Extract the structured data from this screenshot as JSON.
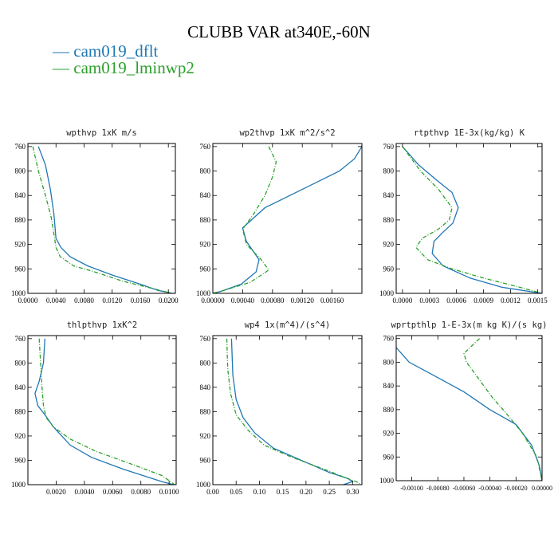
{
  "title": "CLUBB VAR at340E,-60N",
  "legend": [
    {
      "label": "cam019_dflt",
      "color": "#1f77b4"
    },
    {
      "label": "cam019_lminwp2",
      "color": "#2ca02c"
    }
  ],
  "chart_data": [
    {
      "type": "line",
      "title": "wpthvp   1xK m/s",
      "xlim": [
        0.0,
        0.021
      ],
      "ylim": [
        1000,
        755
      ],
      "xticks": [
        "0.0000",
        "0.0040",
        "0.0080",
        "0.0120",
        "0.0160",
        "0.0200"
      ],
      "xtick_values": [
        0.0,
        0.004,
        0.008,
        0.012,
        0.016,
        0.02
      ],
      "yticks": [
        760,
        800,
        840,
        880,
        920,
        960,
        1000
      ],
      "series": [
        {
          "name": "cam019_dflt",
          "x": [
            0.0015,
            0.0025,
            0.0032,
            0.0037,
            0.004,
            0.0047,
            0.006,
            0.0085,
            0.012,
            0.016,
            0.0185,
            0.0205,
            0.0209
          ],
          "y": [
            760,
            790,
            830,
            870,
            910,
            925,
            940,
            955,
            970,
            985,
            995,
            1000,
            1000
          ]
        },
        {
          "name": "cam019_lminwp2",
          "x": [
            0.0007,
            0.0015,
            0.0025,
            0.0033,
            0.0038,
            0.004,
            0.0046,
            0.0065,
            0.0095,
            0.0135,
            0.017,
            0.0195,
            0.0205
          ],
          "y": [
            760,
            800,
            840,
            875,
            910,
            925,
            940,
            955,
            965,
            980,
            990,
            997,
            1000
          ]
        }
      ]
    },
    {
      "type": "line",
      "title": "wp2thvp   1xK m^2/s^2",
      "xlim": [
        0.0,
        0.002
      ],
      "ylim": [
        1000,
        755
      ],
      "xticks": [
        "0.00000",
        "0.00040",
        "0.00080",
        "0.00120",
        "0.00160"
      ],
      "xtick_values": [
        0.0,
        0.0004,
        0.0008,
        0.0012,
        0.0016
      ],
      "yticks": [
        760,
        800,
        840,
        880,
        920,
        960,
        1000
      ],
      "series": [
        {
          "name": "cam019_dflt",
          "x": [
            0.002,
            0.0019,
            0.0017,
            0.0012,
            0.0007,
            0.0004,
            0.00045,
            0.00062,
            0.00058,
            0.00038,
            0.0001,
            0.0
          ],
          "y": [
            760,
            780,
            800,
            830,
            860,
            893,
            915,
            945,
            965,
            985,
            997,
            1000
          ]
        },
        {
          "name": "cam019_lminwp2",
          "x": [
            0.00075,
            0.00085,
            0.0008,
            0.0007,
            0.00055,
            0.0004,
            0.00045,
            0.00065,
            0.00075,
            0.0005,
            0.00015,
            0.0
          ],
          "y": [
            760,
            785,
            810,
            840,
            870,
            895,
            920,
            945,
            962,
            982,
            995,
            1000
          ]
        }
      ]
    },
    {
      "type": "line",
      "title": "rtpthvp   1E-3x(kg/kg) K",
      "xlim": [
        -7e-05,
        0.00155
      ],
      "ylim": [
        1000,
        755
      ],
      "xticks": [
        "0.0000",
        "0.0003",
        "0.0006",
        "0.0009",
        "0.0012",
        "0.0015"
      ],
      "xtick_values": [
        0.0,
        0.0003,
        0.0006,
        0.0009,
        0.0012,
        0.0015
      ],
      "yticks": [
        760,
        800,
        840,
        880,
        920,
        960,
        1000
      ],
      "series": [
        {
          "name": "cam019_dflt",
          "x": [
            0.0,
            0.00018,
            0.00038,
            0.00055,
            0.00062,
            0.00056,
            0.00045,
            0.00035,
            0.00033,
            0.00045,
            0.00075,
            0.0011,
            0.00155
          ],
          "y": [
            760,
            790,
            815,
            835,
            860,
            885,
            900,
            915,
            935,
            955,
            975,
            990,
            1000
          ]
        },
        {
          "name": "cam019_lminwp2",
          "x": [
            0.0,
            0.0002,
            0.0004,
            0.00055,
            0.00052,
            0.0004,
            0.00022,
            0.00015,
            0.00028,
            0.00055,
            0.0009,
            0.0013,
            0.00155
          ],
          "y": [
            760,
            800,
            830,
            860,
            880,
            895,
            910,
            925,
            945,
            960,
            975,
            990,
            1000
          ]
        }
      ]
    },
    {
      "type": "line",
      "title": "thlpthvp   1xK^2",
      "xlim": [
        0.0,
        0.0105
      ],
      "ylim": [
        1000,
        755
      ],
      "xticks": [
        "0.0020",
        "0.0040",
        "0.0060",
        "0.0080",
        "0.0100"
      ],
      "xtick_values": [
        0.002,
        0.004,
        0.006,
        0.008,
        0.01
      ],
      "yticks": [
        760,
        800,
        840,
        880,
        920,
        960,
        1000
      ],
      "series": [
        {
          "name": "cam019_dflt",
          "x": [
            0.0012,
            0.0011,
            0.0008,
            0.0005,
            0.0007,
            0.0012,
            0.0018,
            0.003,
            0.0045,
            0.0068,
            0.0095,
            0.0103
          ],
          "y": [
            760,
            800,
            830,
            850,
            870,
            885,
            905,
            935,
            955,
            975,
            995,
            1000
          ]
        },
        {
          "name": "cam019_lminwp2",
          "x": [
            0.0008,
            0.0009,
            0.001,
            0.0011,
            0.0013,
            0.0018,
            0.003,
            0.0048,
            0.0072,
            0.0095,
            0.0104
          ],
          "y": [
            760,
            800,
            840,
            870,
            890,
            905,
            925,
            945,
            965,
            985,
            1000
          ]
        }
      ]
    },
    {
      "type": "line",
      "title": "wp4   1x(m^4)/(s^4)",
      "xlim": [
        0.0,
        0.32
      ],
      "ylim": [
        1000,
        755
      ],
      "xticks": [
        "0.00",
        "0.05",
        "0.10",
        "0.15",
        "0.20",
        "0.25",
        "0.30"
      ],
      "xtick_values": [
        0.0,
        0.05,
        0.1,
        0.15,
        0.2,
        0.25,
        0.3
      ],
      "yticks": [
        760,
        800,
        840,
        880,
        920,
        960,
        1000
      ],
      "series": [
        {
          "name": "cam019_dflt",
          "x": [
            0.04,
            0.043,
            0.05,
            0.065,
            0.09,
            0.13,
            0.19,
            0.25,
            0.29,
            0.3,
            0.28
          ],
          "y": [
            760,
            820,
            860,
            890,
            915,
            940,
            960,
            980,
            990,
            995,
            1000
          ]
        },
        {
          "name": "cam019_lminwp2",
          "x": [
            0.03,
            0.032,
            0.038,
            0.05,
            0.075,
            0.11,
            0.17,
            0.24,
            0.29,
            0.31,
            0.32
          ],
          "y": [
            760,
            810,
            850,
            885,
            910,
            935,
            955,
            975,
            990,
            996,
            1000
          ]
        }
      ]
    },
    {
      "type": "line",
      "title": "wprtpthlp   1-E-3x(m kg K)/(s kg)",
      "xlim": [
        -0.00112,
        0.0
      ],
      "ylim": [
        1000,
        755
      ],
      "xticks": [
        "-0.00100",
        "-0.00080",
        "-0.00060",
        "-0.00040",
        "-0.00020",
        "0.00000"
      ],
      "xtick_values": [
        -0.001,
        -0.0008,
        -0.0006,
        -0.0004,
        -0.0002,
        0.0
      ],
      "yticks": [
        760,
        800,
        840,
        880,
        920,
        960,
        1000
      ],
      "series": [
        {
          "name": "cam019_dflt",
          "x": [
            -0.00112,
            -0.00102,
            -0.00085,
            -0.0006,
            -0.0004,
            -0.0002,
            -8e-05,
            -2e-05,
            0.0
          ],
          "y": [
            775,
            800,
            820,
            850,
            880,
            905,
            940,
            975,
            1000
          ]
        },
        {
          "name": "cam019_lminwp2",
          "x": [
            -0.00048,
            -0.0006,
            -0.00058,
            -0.00048,
            -0.00038,
            -0.00028,
            -0.00015,
            -4e-05,
            0.0
          ],
          "y": [
            760,
            785,
            800,
            830,
            860,
            885,
            920,
            960,
            1000
          ]
        }
      ]
    }
  ]
}
